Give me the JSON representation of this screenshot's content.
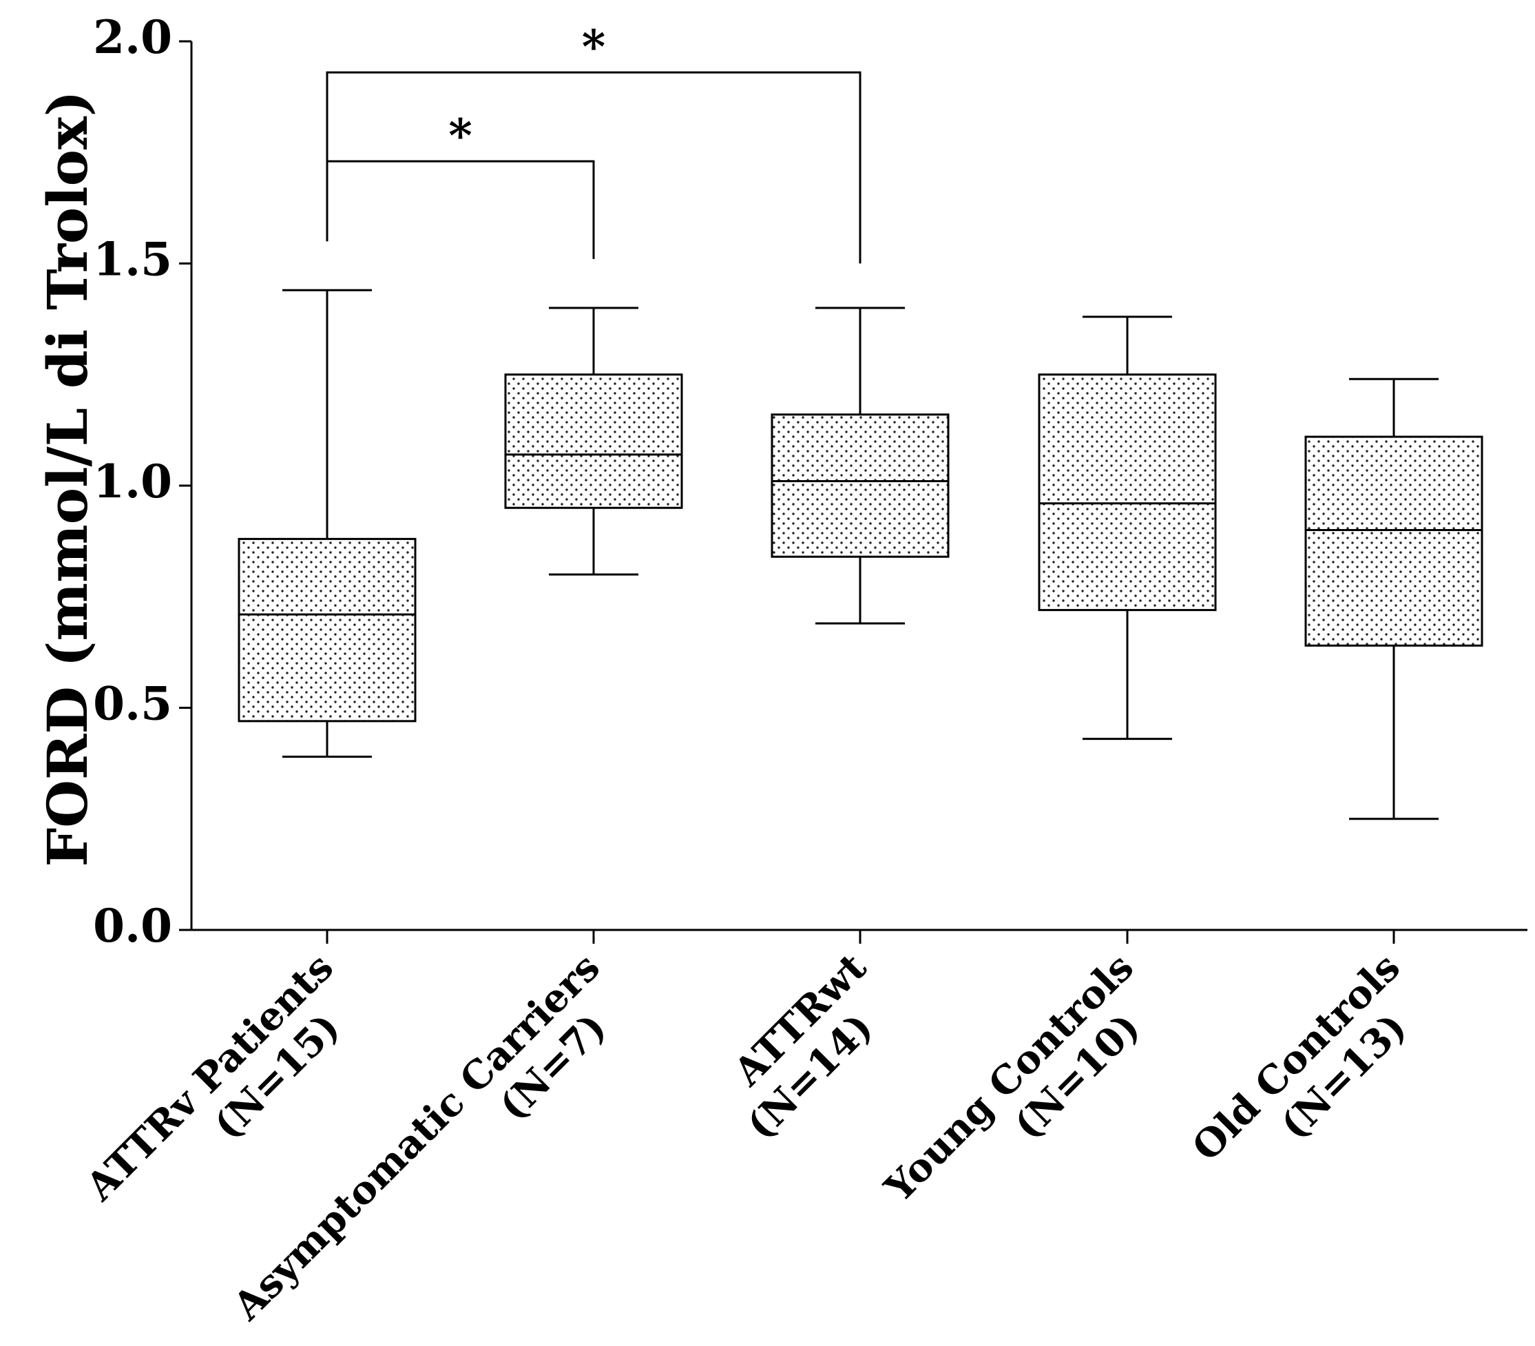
{
  "chart_data": {
    "type": "boxplot",
    "ylabel": "FORD (mmol/L di Trolox)",
    "ylim": [
      0.0,
      2.0
    ],
    "yticks": [
      "0.0",
      "0.5",
      "1.0",
      "1.5",
      "2.0"
    ],
    "categories": [
      {
        "name": "ATTRv Patients",
        "n": "(N=15)",
        "min": 0.39,
        "q1": 0.47,
        "median": 0.71,
        "q3": 0.88,
        "max": 1.44
      },
      {
        "name": "Asymptomatic Carriers",
        "n": "(N=7)",
        "min": 0.8,
        "q1": 0.95,
        "median": 1.07,
        "q3": 1.25,
        "max": 1.4
      },
      {
        "name": "ATTRwt",
        "n": "(N=14)",
        "min": 0.69,
        "q1": 0.84,
        "median": 1.01,
        "q3": 1.16,
        "max": 1.4
      },
      {
        "name": "Young Controls",
        "n": "(N=10)",
        "min": 0.43,
        "q1": 0.72,
        "median": 0.96,
        "q3": 1.25,
        "max": 1.38
      },
      {
        "name": "Old Controls",
        "n": "(N=13)",
        "min": 0.25,
        "q1": 0.64,
        "median": 0.9,
        "q3": 1.11,
        "max": 1.24
      }
    ],
    "significance": [
      {
        "from": 0,
        "to": 1,
        "level": 1.73,
        "from_start": 1.55,
        "to_start": 1.51,
        "label": "*"
      },
      {
        "from": 0,
        "to": 2,
        "level": 1.93,
        "from_start": 1.55,
        "to_start": 1.5,
        "label": "*"
      }
    ],
    "box_fill": "dotted",
    "color": "#000000"
  }
}
